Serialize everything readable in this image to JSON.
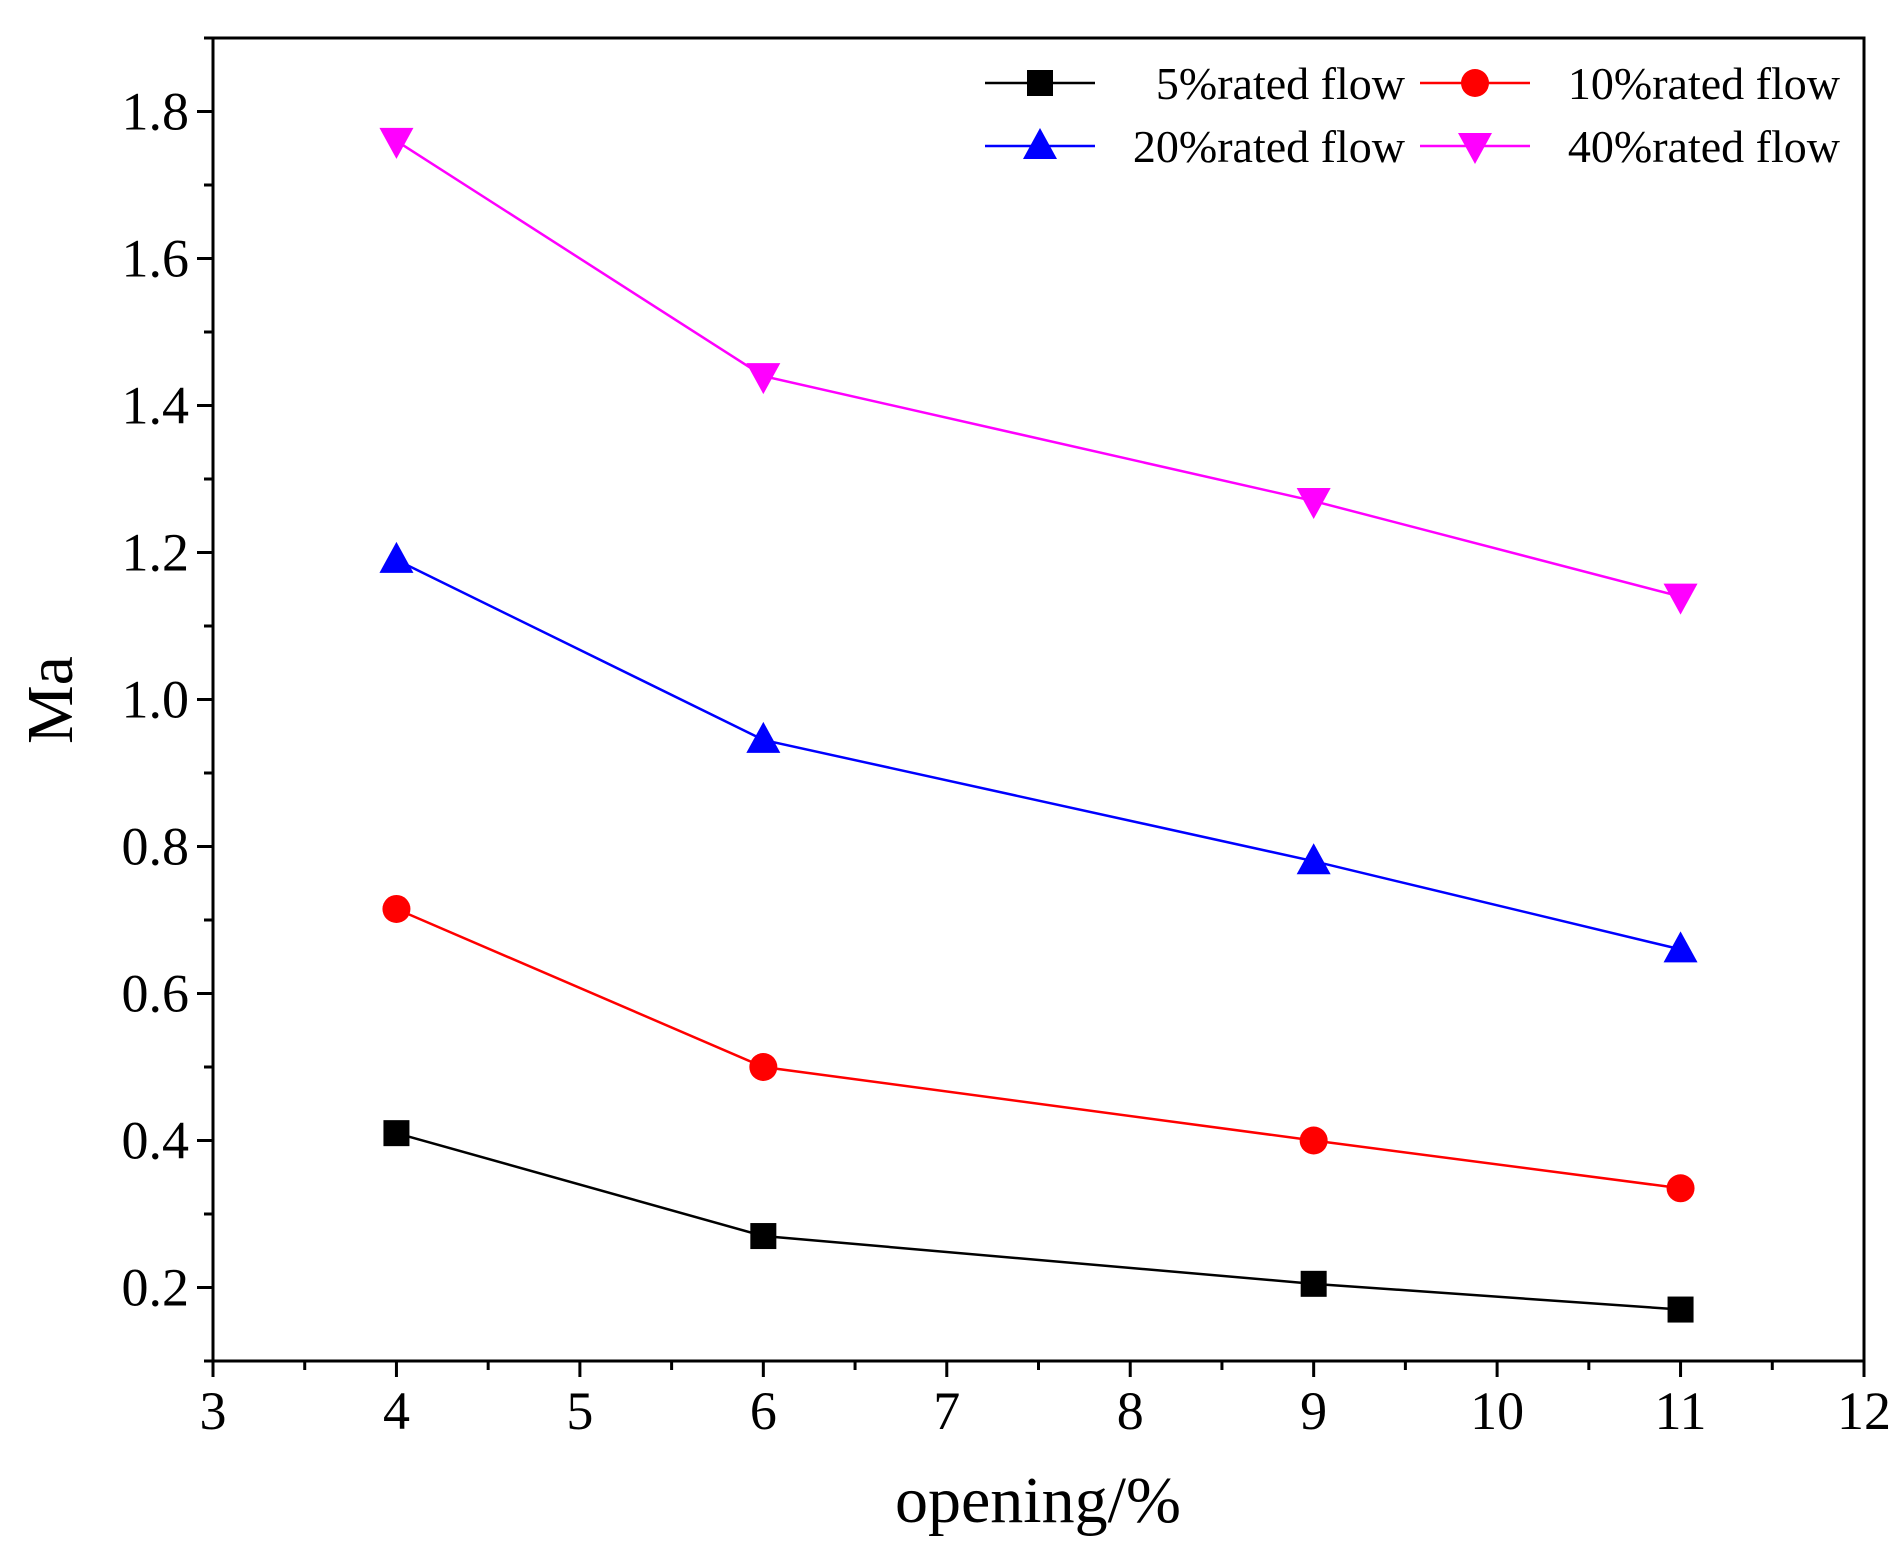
{
  "chart_data": {
    "type": "line",
    "title": "",
    "xlabel": "opening/%",
    "ylabel": "Ma",
    "xlim": [
      3,
      12
    ],
    "ylim": [
      0.1,
      1.9
    ],
    "x_ticks": [
      3,
      4,
      5,
      6,
      7,
      8,
      9,
      10,
      11,
      12
    ],
    "y_ticks": [
      0.2,
      0.4,
      0.6,
      0.8,
      1.0,
      1.2,
      1.4,
      1.6,
      1.8
    ],
    "y_tick_labels": [
      "0.2",
      "0.4",
      "0.6",
      "0.8",
      "1.0",
      "1.2",
      "1.4",
      "1.6",
      "1.8"
    ],
    "grid": false,
    "legend_position": "top-right",
    "x": [
      4,
      6,
      9,
      11
    ],
    "series": [
      {
        "name": "5%rated flow",
        "color": "#000000",
        "marker": "square",
        "values": [
          0.41,
          0.27,
          0.205,
          0.17
        ]
      },
      {
        "name": "10%rated flow",
        "color": "#ff0000",
        "marker": "circle",
        "values": [
          0.715,
          0.5,
          0.4,
          0.335
        ]
      },
      {
        "name": "20%rated flow",
        "color": "#0000ff",
        "marker": "triangle-up",
        "values": [
          1.19,
          0.945,
          0.78,
          0.66
        ]
      },
      {
        "name": "40%rated flow",
        "color": "#ff00ff",
        "marker": "triangle-down",
        "values": [
          1.76,
          1.44,
          1.27,
          1.14
        ]
      }
    ]
  }
}
